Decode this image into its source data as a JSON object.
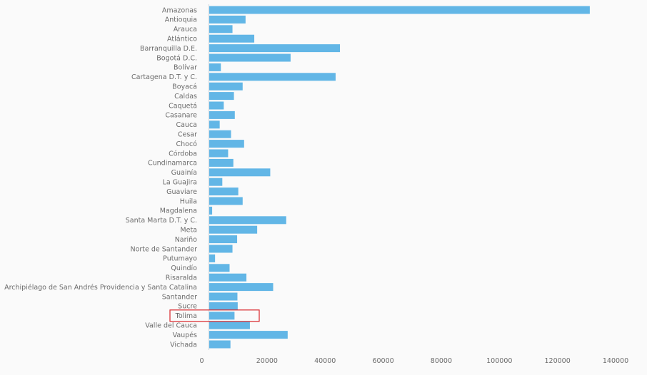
{
  "chart_data": {
    "type": "bar",
    "orientation": "horizontal",
    "title": "",
    "xlabel": "",
    "ylabel": "",
    "xlim": [
      0,
      140000
    ],
    "x_ticks": [
      "0",
      "20000",
      "40000",
      "60000",
      "80000",
      "100000",
      "120000",
      "140000"
    ],
    "x_tick_values": [
      0,
      20000,
      40000,
      60000,
      80000,
      100000,
      120000,
      140000
    ],
    "grid": false,
    "legend": "none",
    "bar_color": "#62b6e6",
    "highlight_color": "#d9262a",
    "highlighted_category": "Tolima",
    "categories": [
      "Amazonas",
      "Antioquia",
      "Arauca",
      "Atlántico",
      "Barranquilla D.E.",
      "Bogotá D.C.",
      "Bolívar",
      "Cartagena D.T. y C.",
      "Boyacá",
      "Caldas",
      "Caquetá",
      "Casanare",
      "Cauca",
      "Cesar",
      "Chocó",
      "Córdoba",
      "Cundinamarca",
      "Guainía",
      "La Guajira",
      "Guaviare",
      "Huila",
      "Magdalena",
      "Santa Marta D.T. y C.",
      "Meta",
      "Nariño",
      "Norte de Santander",
      "Putumayo",
      "Quindío",
      "Risaralda",
      "Archipiélago de San Andrés Providencia y Santa Catalina",
      "Santander",
      "Sucre",
      "Tolima",
      "Valle del Cauca",
      "Vaupés",
      "Vichada"
    ],
    "values": [
      131000,
      12500,
      8000,
      15500,
      45000,
      28000,
      4000,
      43500,
      11500,
      8500,
      5000,
      8800,
      3600,
      7500,
      12000,
      6500,
      8300,
      21000,
      4500,
      10000,
      11500,
      1000,
      26500,
      16500,
      9600,
      8000,
      2000,
      7000,
      12800,
      22000,
      9700,
      9800,
      8700,
      14000,
      27000,
      7300
    ]
  }
}
